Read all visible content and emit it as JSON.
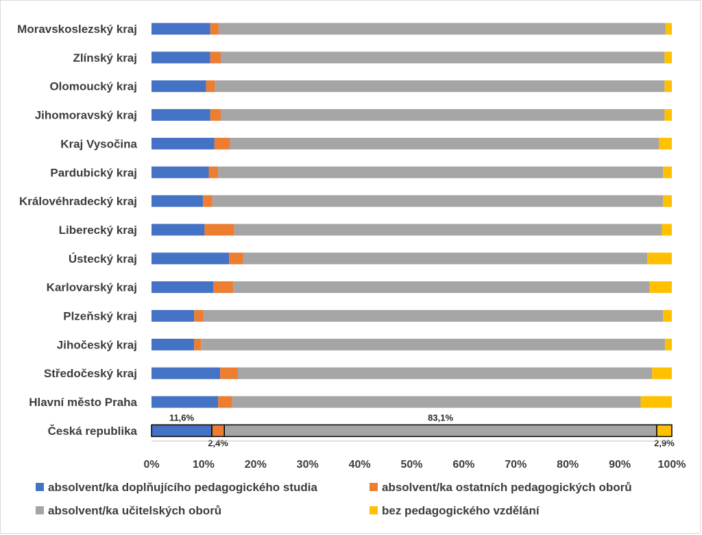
{
  "chart_data": {
    "type": "bar",
    "orientation": "horizontal",
    "stacked": "percent",
    "categories": [
      "Moravskoslezský kraj",
      "Zlínský kraj",
      "Olomoucký kraj",
      "Jihomoravský kraj",
      "Kraj Vysočina",
      "Pardubický kraj",
      "Královéhradecký kraj",
      "Liberecký kraj",
      "Ústecký kraj",
      "Karlovarský kraj",
      "Plzeňský kraj",
      "Jihočeský kraj",
      "Středočeský kraj",
      "Hlavní město Praha",
      "Česká republika"
    ],
    "series": [
      {
        "name": "absolvent/ka doplňujícího pedagogického studia",
        "color": "#4472C4",
        "values": [
          11.3,
          11.3,
          10.5,
          11.3,
          12.1,
          11.0,
          9.9,
          10.2,
          14.9,
          11.9,
          8.2,
          8.2,
          13.2,
          12.8,
          11.6
        ]
      },
      {
        "name": "absolvent/ka ostatních pedagogických oborů",
        "color": "#ED7D31",
        "values": [
          1.6,
          2.0,
          1.7,
          2.0,
          3.0,
          1.8,
          1.8,
          5.7,
          2.7,
          3.8,
          1.8,
          1.3,
          3.4,
          2.7,
          2.4
        ]
      },
      {
        "name": "absolvent/ka učitelských oborů",
        "color": "#A5A5A5",
        "values": [
          85.9,
          85.3,
          86.4,
          85.3,
          82.4,
          85.5,
          86.6,
          82.2,
          77.7,
          80.0,
          88.3,
          89.2,
          79.6,
          78.5,
          83.1
        ]
      },
      {
        "name": "bez pedagogického vzdělání",
        "color": "#FFC000",
        "values": [
          1.2,
          1.4,
          1.4,
          1.4,
          2.5,
          1.7,
          1.7,
          1.9,
          4.7,
          4.3,
          1.7,
          1.3,
          3.8,
          6.0,
          2.9
        ]
      }
    ],
    "data_labels": [
      {
        "category": "Česká republika",
        "series": 0,
        "text": "11,6%"
      },
      {
        "category": "Česká republika",
        "series": 1,
        "text": "2,4%"
      },
      {
        "category": "Česká republika",
        "series": 2,
        "text": "83,1%"
      },
      {
        "category": "Česká republika",
        "series": 3,
        "text": "2,9%"
      }
    ],
    "highlighted_category": "Česká republika",
    "xlim": [
      0,
      100
    ],
    "xticks": [
      "0%",
      "10%",
      "20%",
      "30%",
      "40%",
      "50%",
      "60%",
      "70%",
      "80%",
      "90%",
      "100%"
    ],
    "title": "",
    "xlabel": "",
    "ylabel": "",
    "grid": false,
    "legend": {
      "position": "bottom",
      "columns": 2
    }
  }
}
